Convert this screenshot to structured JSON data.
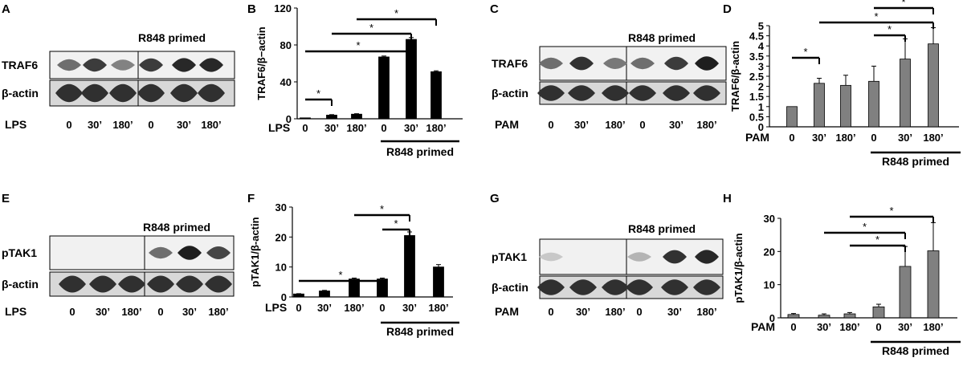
{
  "figure": {
    "panel_letters": [
      "A",
      "B",
      "C",
      "D",
      "E",
      "F",
      "G",
      "H"
    ],
    "primed_label": "R848 primed",
    "lane_labels": [
      "0",
      "30’",
      "180’",
      "0",
      "30’",
      "180’"
    ],
    "beta_actin_label": "β-actin",
    "lps_label": "LPS",
    "pam_label": "PAM"
  },
  "blots": [
    {
      "id": "A",
      "stimulus": "LPS",
      "target": "TRAF6",
      "target_intensity": [
        0.55,
        0.8,
        0.45,
        0.8,
        0.9,
        0.9
      ]
    },
    {
      "id": "C",
      "stimulus": "PAM",
      "target": "TRAF6",
      "target_intensity": [
        0.55,
        0.85,
        0.5,
        0.55,
        0.8,
        0.95
      ]
    },
    {
      "id": "E",
      "stimulus": "LPS",
      "target": "pTAK1",
      "target_intensity": [
        0.0,
        0.0,
        0.0,
        0.55,
        0.95,
        0.75
      ]
    },
    {
      "id": "G",
      "stimulus": "PAM",
      "target": "pTAK1",
      "target_intensity": [
        0.1,
        0.0,
        0.0,
        0.2,
        0.85,
        0.9
      ]
    }
  ],
  "chart_data": [
    {
      "id": "B",
      "type": "bar",
      "ylabel": "TRAF6/β−actin",
      "stimulus": "LPS",
      "categories": [
        "0",
        "30’",
        "180’",
        "0",
        "30’",
        "180’"
      ],
      "values": [
        1,
        4,
        5,
        67,
        86,
        51
      ],
      "errors": [
        0,
        0.5,
        0.5,
        1,
        2,
        1
      ],
      "ylim": [
        0,
        120
      ],
      "yticks": [
        0,
        40,
        80,
        120
      ],
      "bar_color": "#000000",
      "primed_group": "R848 primed",
      "significance": "*"
    },
    {
      "id": "D",
      "type": "bar",
      "ylabel": "TRAF6/β-actin",
      "stimulus": "PAM",
      "categories": [
        "0",
        "30’",
        "180’",
        "0",
        "30’",
        "180’"
      ],
      "values": [
        1,
        2.15,
        2.05,
        2.25,
        3.35,
        4.1
      ],
      "errors": [
        0,
        0.25,
        0.5,
        0.75,
        1,
        0.8
      ],
      "ylim": [
        0,
        5
      ],
      "yticks": [
        0,
        0.5,
        1,
        1.5,
        2,
        2.5,
        3,
        3.5,
        4,
        4.5,
        5
      ],
      "bar_color": "#808080",
      "primed_group": "R848 primed",
      "significance": "*"
    },
    {
      "id": "F",
      "type": "bar",
      "ylabel": "pTAK1/β-actin",
      "stimulus": "LPS",
      "categories": [
        "0",
        "30’",
        "180’",
        "0",
        "30’",
        "180’"
      ],
      "values": [
        1,
        2,
        6,
        6,
        20.5,
        10
      ],
      "errors": [
        0.1,
        0.2,
        0.3,
        0.3,
        1.2,
        0.8
      ],
      "ylim": [
        0,
        30
      ],
      "yticks": [
        0,
        10,
        20,
        30
      ],
      "bar_color": "#000000",
      "primed_group": "R848 primed",
      "significance": "*"
    },
    {
      "id": "H",
      "type": "bar",
      "ylabel": "pTAK1/β-actin",
      "stimulus": "PAM",
      "categories": [
        "0",
        "30’",
        "180’",
        "0",
        "30’",
        "180’"
      ],
      "values": [
        1,
        0.8,
        1.2,
        3.3,
        15.5,
        20.2
      ],
      "errors": [
        0.3,
        0.4,
        0.4,
        0.8,
        6,
        8.5
      ],
      "ylim": [
        0,
        30
      ],
      "yticks": [
        0,
        10,
        20,
        30
      ],
      "bar_color": "#808080",
      "primed_group": "R848 primed",
      "significance": "*"
    }
  ]
}
